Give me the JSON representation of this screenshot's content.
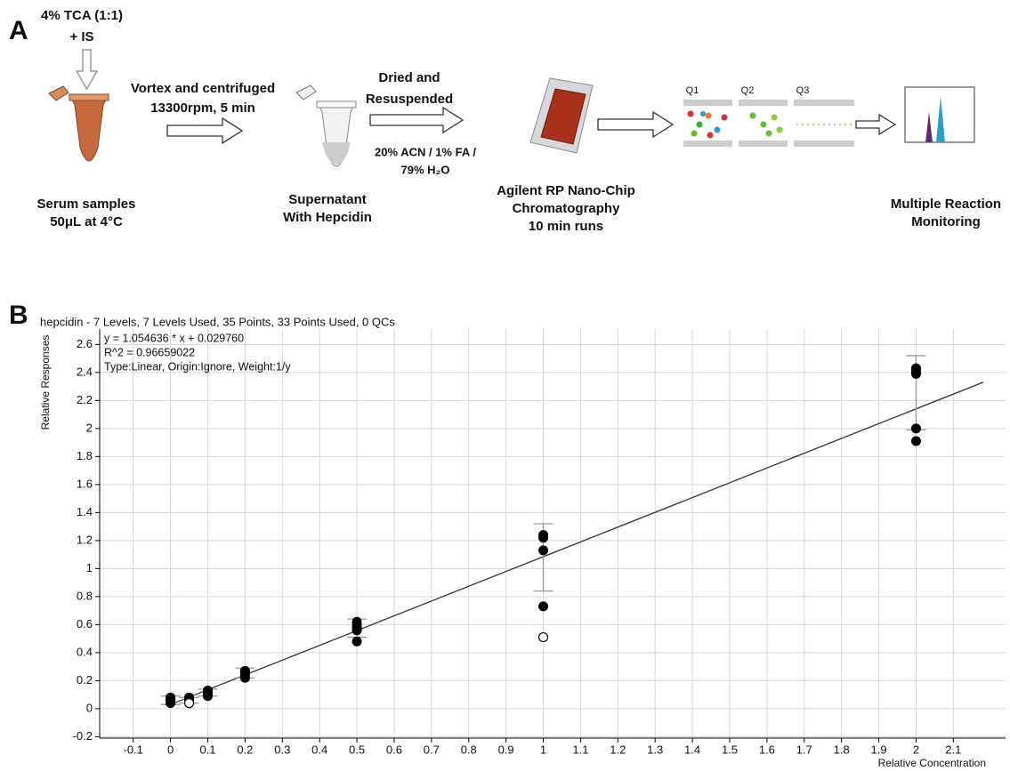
{
  "panel_a": {
    "label": "A",
    "reagent": [
      "4% TCA (1:1)",
      "+ IS"
    ],
    "step1": [
      "Vortex and centrifuged",
      "13300rpm, 5 min"
    ],
    "step2": [
      "Dried and",
      "Resuspended"
    ],
    "solvent": [
      "20% ACN / 1% FA /",
      "79% H₂O"
    ],
    "serum": [
      "Serum samples",
      "50μL at 4°C"
    ],
    "supernatant": [
      "Supernatant",
      "With Hepcidin"
    ],
    "chip": [
      "Agilent RP Nano-Chip",
      "Chromatography",
      "10 min runs"
    ],
    "quads": [
      "Q1",
      "Q2",
      "Q3"
    ],
    "mrm": [
      "Multiple Reaction",
      "Monitoring"
    ]
  },
  "chart_data": {
    "type": "scatter",
    "panel_label": "B",
    "title": "hepcidin - 7 Levels, 7 Levels Used, 35 Points, 33 Points Used, 0 QCs",
    "annotations": [
      "y = 1.054636 * x  + 0.029760",
      "R^2 = 0.96659022",
      "Type:Linear, Origin:Ignore, Weight:1/y"
    ],
    "x_label": "Relative Concentration",
    "y_label": "Relative Responses",
    "xlim": [
      -0.19,
      2.24
    ],
    "ylim": [
      -0.21,
      2.71
    ],
    "xticks": [
      -0.1,
      0,
      0.1,
      0.2,
      0.3,
      0.4,
      0.5,
      0.6,
      0.7,
      0.8,
      0.9,
      1,
      1.1,
      1.2,
      1.3,
      1.4,
      1.5,
      1.6,
      1.7,
      1.8,
      1.9,
      2,
      2.1
    ],
    "yticks": [
      -0.2,
      0,
      0.2,
      0.4,
      0.6,
      0.8,
      1,
      1.2,
      1.4,
      1.6,
      1.8,
      2,
      2.2,
      2.4,
      2.6
    ],
    "grid": true,
    "color": "#000000",
    "x": [
      0,
      0,
      0,
      0,
      0,
      0.05,
      0.05,
      0.05,
      0.05,
      0.1,
      0.1,
      0.1,
      0.1,
      0.1,
      0.2,
      0.2,
      0.2,
      0.2,
      0.2,
      0.5,
      0.5,
      0.5,
      0.5,
      0.5,
      1,
      1,
      1,
      1,
      2,
      2,
      2,
      2,
      2
    ],
    "values": [
      0.08,
      0.07,
      0.06,
      0.05,
      0.04,
      0.08,
      0.07,
      0.06,
      0.05,
      0.13,
      0.12,
      0.11,
      0.1,
      0.09,
      0.27,
      0.26,
      0.25,
      0.24,
      0.22,
      0.62,
      0.6,
      0.58,
      0.56,
      0.48,
      1.24,
      1.22,
      1.13,
      0.73,
      2.43,
      2.41,
      2.39,
      2.0,
      1.91
    ],
    "excluded": {
      "x": [
        0.05,
        1
      ],
      "values": [
        0.04,
        0.51
      ]
    },
    "error_bars": {
      "x": [
        0,
        0.05,
        0.1,
        0.2,
        0.5,
        1,
        2
      ],
      "values": [
        0.06,
        0.06,
        0.115,
        0.255,
        0.575,
        1.08,
        2.255
      ],
      "errors": [
        0.03,
        0.02,
        0.025,
        0.035,
        0.065,
        0.24,
        0.265
      ]
    },
    "fit": {
      "x": [
        0,
        2.18
      ],
      "values": [
        0.03,
        2.33
      ]
    }
  }
}
